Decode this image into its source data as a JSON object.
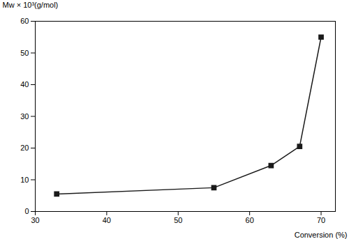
{
  "chart_data": {
    "type": "line",
    "x": [
      33,
      55,
      63,
      67,
      70
    ],
    "values": [
      5.5,
      7.5,
      14.5,
      20.5,
      55
    ],
    "xlabel": "Conversion (%)",
    "ylabel": "Mw × 10³(g/mol)",
    "xlim": [
      30,
      72
    ],
    "ylim": [
      0,
      60
    ],
    "xticks": [
      30,
      40,
      50,
      60,
      70
    ],
    "yticks": [
      0,
      10,
      20,
      30,
      40,
      50,
      60
    ],
    "color": "#1a1a1a",
    "marker": "square"
  }
}
